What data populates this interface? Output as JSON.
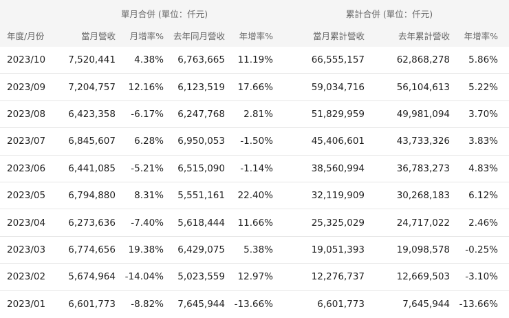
{
  "groups": {
    "monthly": "單月合併 (單位：仟元)",
    "cumulative": "累計合併 (單位：仟元)"
  },
  "columns": {
    "period": "年度/月份",
    "monthly_revenue": "當月營收",
    "mom": "月增率%",
    "last_year_monthly": "去年同月營收",
    "yoy": "年增率%",
    "cum_revenue": "當月累計營收",
    "last_year_cum": "去年累計營收",
    "cum_yoy": "年增率%"
  },
  "rows": [
    [
      "2023/10",
      "7,520,441",
      "4.38%",
      "6,763,665",
      "11.19%",
      "66,555,157",
      "62,868,278",
      "5.86%"
    ],
    [
      "2023/09",
      "7,204,757",
      "12.16%",
      "6,123,519",
      "17.66%",
      "59,034,716",
      "56,104,613",
      "5.22%"
    ],
    [
      "2023/08",
      "6,423,358",
      "-6.17%",
      "6,247,768",
      "2.81%",
      "51,829,959",
      "49,981,094",
      "3.70%"
    ],
    [
      "2023/07",
      "6,845,607",
      "6.28%",
      "6,950,053",
      "-1.50%",
      "45,406,601",
      "43,733,326",
      "3.83%"
    ],
    [
      "2023/06",
      "6,441,085",
      "-5.21%",
      "6,515,090",
      "-1.14%",
      "38,560,994",
      "36,783,273",
      "4.83%"
    ],
    [
      "2023/05",
      "6,794,880",
      "8.31%",
      "5,551,161",
      "22.40%",
      "32,119,909",
      "30,268,183",
      "6.12%"
    ],
    [
      "2023/04",
      "6,273,636",
      "-7.40%",
      "5,618,444",
      "11.66%",
      "25,325,029",
      "24,717,022",
      "2.46%"
    ],
    [
      "2023/03",
      "6,774,656",
      "19.38%",
      "6,429,075",
      "5.38%",
      "19,051,393",
      "19,098,578",
      "-0.25%"
    ],
    [
      "2023/02",
      "5,674,964",
      "-14.04%",
      "5,023,559",
      "12.97%",
      "12,276,737",
      "12,669,503",
      "-3.10%"
    ],
    [
      "2023/01",
      "6,601,773",
      "-8.82%",
      "7,645,944",
      "-13.66%",
      "6,601,773",
      "7,645,944",
      "-13.66%"
    ]
  ]
}
